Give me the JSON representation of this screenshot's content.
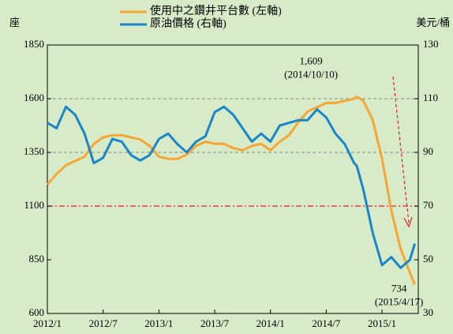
{
  "chart_data": {
    "type": "line",
    "legend": [
      "使用中之鑽井平台數 (左軸)",
      "原油價格 (右軸)"
    ],
    "y_unit": "座",
    "y2_unit": "美元/桶",
    "x": [
      2012,
      2012.083,
      2012.167,
      2012.25,
      2012.333,
      2012.417,
      2012.5,
      2012.583,
      2012.667,
      2012.75,
      2012.833,
      2012.917,
      2013,
      2013.083,
      2013.167,
      2013.25,
      2013.333,
      2013.417,
      2013.5,
      2013.583,
      2013.667,
      2013.75,
      2013.833,
      2013.917,
      2014,
      2014.083,
      2014.167,
      2014.25,
      2014.333,
      2014.417,
      2014.5,
      2014.583,
      2014.667,
      2014.75,
      2014.774,
      2014.833,
      2014.917,
      2015,
      2015.083,
      2015.167,
      2015.25,
      2015.294
    ],
    "series": [
      {
        "name": "使用中之鑽井平台數 (左軸)",
        "color": "#f6a733",
        "axis": "y",
        "values": [
          1200,
          1250,
          1290,
          1310,
          1330,
          1390,
          1420,
          1430,
          1430,
          1420,
          1410,
          1380,
          1330,
          1320,
          1320,
          1340,
          1380,
          1400,
          1390,
          1390,
          1370,
          1360,
          1380,
          1390,
          1360,
          1400,
          1430,
          1490,
          1540,
          1560,
          1580,
          1580,
          1590,
          1600,
          1609,
          1590,
          1500,
          1320,
          1080,
          900,
          790,
          734
        ]
      },
      {
        "name": "原油價格 (右軸)",
        "color": "#1a86c8",
        "axis": "y2",
        "values": [
          101,
          99,
          107,
          104,
          97,
          86,
          88,
          95,
          94,
          89,
          87,
          89,
          95,
          97,
          93,
          90,
          94,
          96,
          105,
          107,
          104,
          99,
          94,
          97,
          94,
          100,
          101,
          102,
          102,
          106,
          103,
          97,
          93,
          86,
          85,
          76,
          60,
          48,
          51,
          47,
          50,
          56
        ]
      }
    ],
    "xlim": [
      2012,
      2015.325
    ],
    "xticks": [
      {
        "value": 2012,
        "label": "2012/1"
      },
      {
        "value": 2012.5,
        "label": "2012/7"
      },
      {
        "value": 2013,
        "label": "2013/1"
      },
      {
        "value": 2013.5,
        "label": "2013/7"
      },
      {
        "value": 2014,
        "label": "2014/1"
      },
      {
        "value": 2014.5,
        "label": "2014/7"
      },
      {
        "value": 2015,
        "label": "2015/1"
      }
    ],
    "ylim": [
      600,
      1850
    ],
    "yticks": [
      600,
      850,
      1100,
      1350,
      1600,
      1850
    ],
    "y2lim": [
      30,
      130
    ],
    "y2ticks": [
      30,
      50,
      70,
      90,
      110,
      130
    ],
    "grid_values": [
      1350,
      1600
    ],
    "reference_line": {
      "value": 1100,
      "color": "#e0202a"
    },
    "annotations": [
      {
        "text": "1,609",
        "x": 2014.774,
        "y": 1609
      },
      {
        "text": "(2014/10/10)",
        "x": 2014.774,
        "y": 1609
      },
      {
        "text": "734",
        "x": 2015.294,
        "y": 734
      },
      {
        "text": "(2015/4/17)",
        "x": 2015.294,
        "y": 734
      }
    ]
  }
}
